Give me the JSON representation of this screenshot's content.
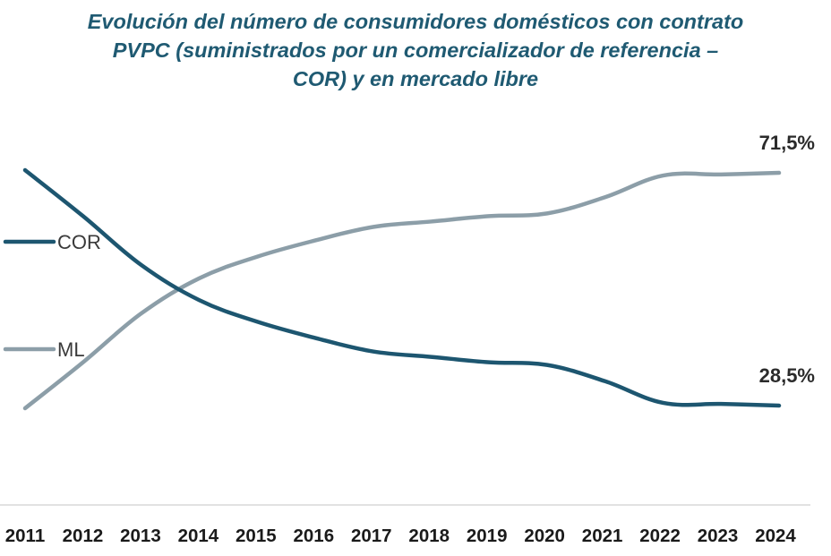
{
  "chart_data": {
    "type": "line",
    "title_lines": [
      "Evolución del número de consumidores domésticos con contrato",
      "PVPC (suministrados por un comercializador de referencia –",
      "COR) y en mercado libre"
    ],
    "categories": [
      "2011",
      "2012",
      "2013",
      "2014",
      "2015",
      "2016",
      "2017",
      "2018",
      "2019",
      "2020",
      "2021",
      "2022",
      "2023",
      "2024"
    ],
    "series": [
      {
        "name": "COR",
        "color": "#1d5670",
        "values": [
          72,
          63.5,
          54.5,
          48,
          44,
          41,
          38.5,
          37.5,
          36.5,
          36,
          33,
          29,
          28.8,
          28.5
        ],
        "end_label": "28,5%"
      },
      {
        "name": "ML",
        "color": "#8c9ea8",
        "values": [
          28,
          36.5,
          45.5,
          52,
          56,
          59,
          61.5,
          62.5,
          63.5,
          64,
          67,
          71,
          71.2,
          71.5
        ],
        "end_label": "71,5%"
      }
    ],
    "ylim": [
      15,
      90
    ],
    "grid": false,
    "legend": "left"
  }
}
